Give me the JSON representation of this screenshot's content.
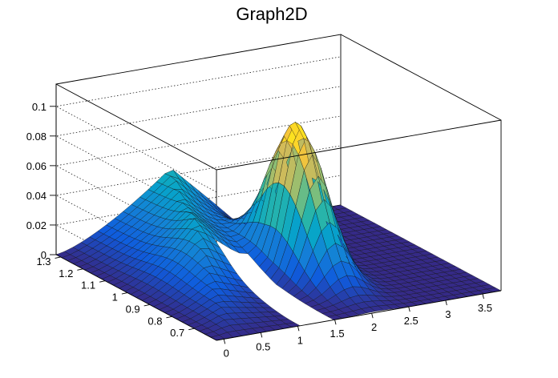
{
  "chart_data": {
    "type": "surface",
    "title": "Graph2D",
    "xlabel": "",
    "ylabel": "",
    "zlabel": "",
    "xlim": [
      -0.1,
      3.75
    ],
    "ylim": [
      0.6,
      1.32
    ],
    "zlim": [
      0,
      0.115
    ],
    "x_ticks": [
      "0",
      "0.5",
      "1",
      "1.5",
      "2",
      "2.5",
      "3",
      "3.5"
    ],
    "x_tick_values": [
      0,
      0.5,
      1,
      1.5,
      2,
      2.5,
      3,
      3.5
    ],
    "y_ticks": [
      "0.7",
      "0.8",
      "0.9",
      "1",
      "1.1",
      "1.2",
      "1.3"
    ],
    "y_tick_values": [
      0.7,
      0.8,
      0.9,
      1.0,
      1.1,
      1.2,
      1.3
    ],
    "z_ticks": [
      "0",
      "0.02",
      "0.04",
      "0.06",
      "0.08",
      "0.1"
    ],
    "z_tick_values": [
      0,
      0.02,
      0.04,
      0.06,
      0.08,
      0.1
    ],
    "grid": true,
    "colormap": [
      "#352a87",
      "#0f5cdd",
      "#1481d6",
      "#06a4ca",
      "#2eb7a4",
      "#87bf77",
      "#d1bb59",
      "#fec832",
      "#f9fb0e"
    ],
    "features": {
      "ridge": {
        "x_at_y_min": 0.1,
        "x_at_y_max": 1.45,
        "peak_x": 1.35,
        "peak_y": 1.0,
        "height_at_y_max": 0.045,
        "height_at_y_min": 0.0
      },
      "peak": {
        "x": 2.05,
        "y": 0.95,
        "height": 0.1
      },
      "hole": {
        "x_range": [
          1.05,
          1.52
        ],
        "y_range": [
          0.6,
          0.98
        ]
      }
    }
  }
}
